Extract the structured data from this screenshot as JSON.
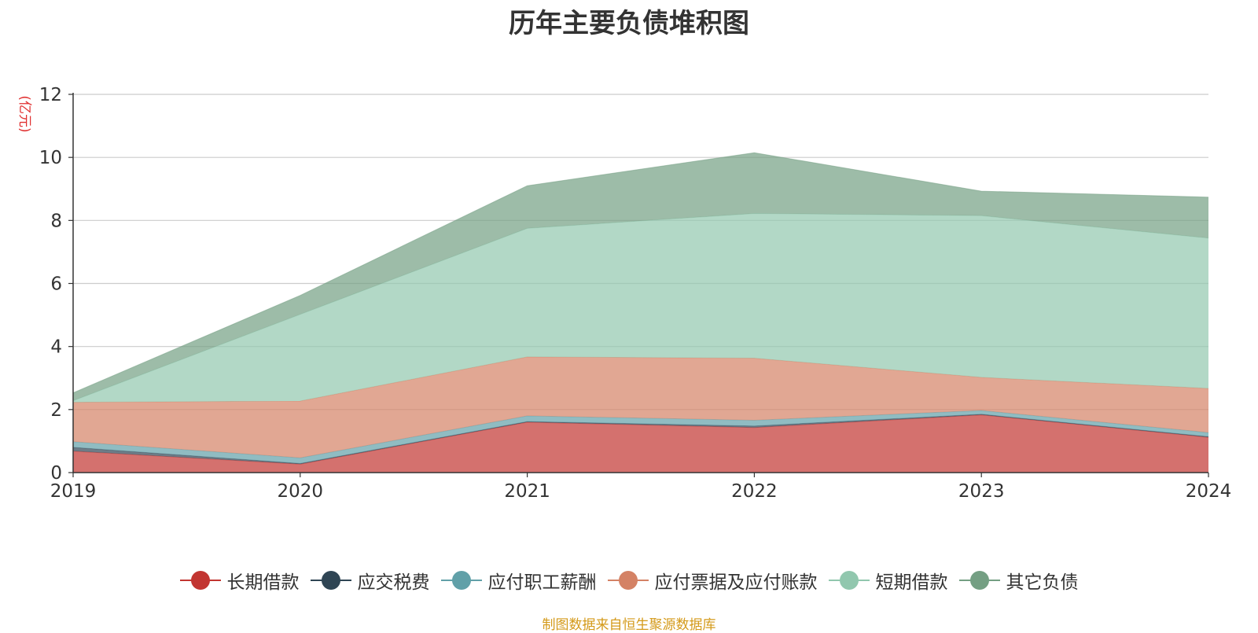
{
  "chart_data": {
    "type": "area",
    "stacked": true,
    "title": "历年主要负债堆积图",
    "ylabel": "(亿元)",
    "xlabel": "",
    "x": [
      "2019",
      "2020",
      "2021",
      "2022",
      "2023",
      "2024"
    ],
    "ylim": [
      0,
      12
    ],
    "yticks": [
      0,
      2,
      4,
      6,
      8,
      10,
      12
    ],
    "grid": true,
    "legend_position": "bottom",
    "series": [
      {
        "name": "长期借款",
        "color": "#c23531",
        "values": [
          0.68,
          0.27,
          1.6,
          1.43,
          1.83,
          1.12
        ]
      },
      {
        "name": "应交税费",
        "color": "#2f4554",
        "values": [
          0.12,
          0.02,
          0.02,
          0.05,
          0.02,
          0.02
        ]
      },
      {
        "name": "应付职工薪酬",
        "color": "#61a0a8",
        "values": [
          0.18,
          0.18,
          0.18,
          0.18,
          0.12,
          0.13
        ]
      },
      {
        "name": "应付票据及应付账款",
        "color": "#d48265",
        "values": [
          1.25,
          1.8,
          1.87,
          1.97,
          1.05,
          1.4
        ]
      },
      {
        "name": "短期借款",
        "color": "#91c7ae",
        "values": [
          0.05,
          2.75,
          4.08,
          4.59,
          5.13,
          4.77
        ]
      },
      {
        "name": "其它负债",
        "color": "#749f83",
        "values": [
          0.25,
          0.6,
          1.35,
          1.93,
          0.78,
          1.3
        ]
      }
    ]
  },
  "footer": {
    "source": "制图数据来自恒生聚源数据库"
  }
}
